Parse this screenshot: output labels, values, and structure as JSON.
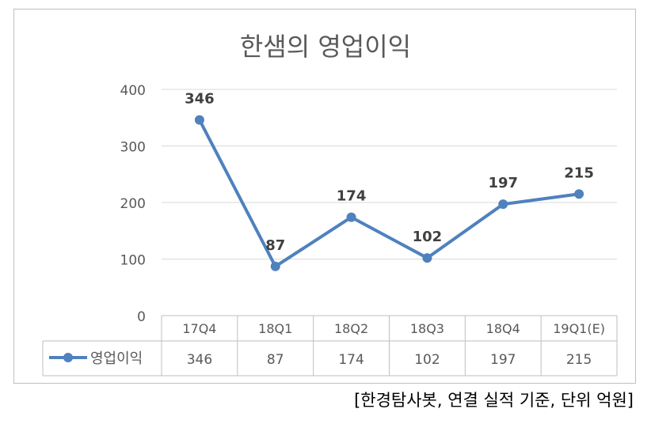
{
  "source_note": "[한경탐사봇, 연결 실적 기준, 단위 억원]",
  "chart_data": {
    "type": "line",
    "title": "한샘의 영업이익",
    "xlabel": "",
    "ylabel": "",
    "categories": [
      "17Q4",
      "18Q1",
      "18Q2",
      "18Q3",
      "18Q4",
      "19Q1(E)"
    ],
    "series": [
      {
        "name": "영업이익",
        "values": [
          346,
          87,
          174,
          102,
          197,
          215
        ],
        "color": "#4f81bd"
      }
    ],
    "ylim": [
      0,
      400
    ],
    "yticks": [
      0,
      100,
      200,
      300,
      400
    ],
    "grid": true,
    "data_labels": true,
    "data_table": true,
    "colors": {
      "gridline": "#d9d9d9",
      "table_border": "#bfbfbf",
      "text": "#595959",
      "label": "#404040"
    }
  }
}
